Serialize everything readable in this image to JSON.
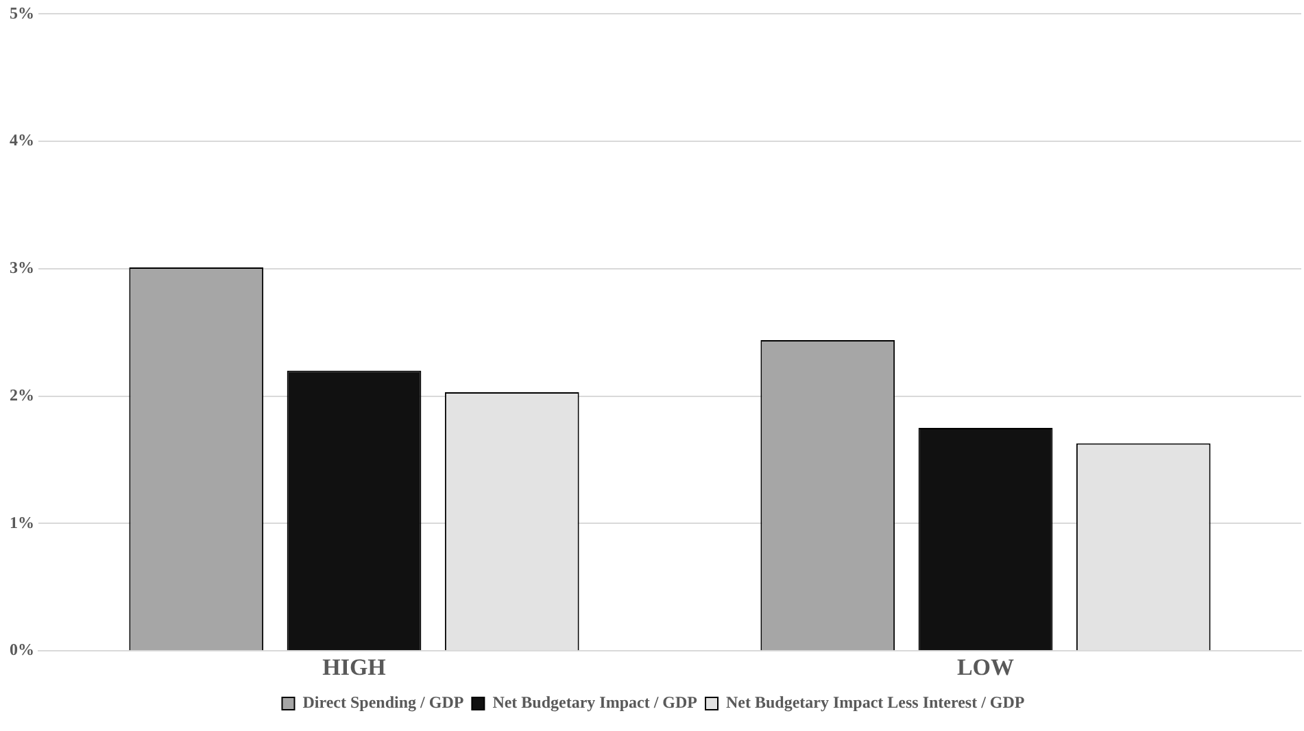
{
  "chart_data": {
    "type": "bar",
    "categories": [
      "HIGH",
      "LOW"
    ],
    "series": [
      {
        "name": "Direct Spending / GDP",
        "color": "#a6a6a6",
        "values": [
          3.01,
          2.44
        ]
      },
      {
        "name": "Net Budgetary Impact / GDP",
        "color": "#111111",
        "values": [
          2.2,
          1.75
        ]
      },
      {
        "name": "Net Budgetary Impact Less Interest / GDP",
        "color": "#e3e3e3",
        "values": [
          2.03,
          1.63
        ]
      }
    ],
    "ylim": [
      0,
      5
    ],
    "yticks": [
      {
        "value": 0,
        "label": "0%"
      },
      {
        "value": 1,
        "label": "1%"
      },
      {
        "value": 2,
        "label": "2%"
      },
      {
        "value": 3,
        "label": "3%"
      },
      {
        "value": 4,
        "label": "4%"
      },
      {
        "value": 5,
        "label": "5%"
      }
    ],
    "grid": "y",
    "legend": "bottom"
  }
}
